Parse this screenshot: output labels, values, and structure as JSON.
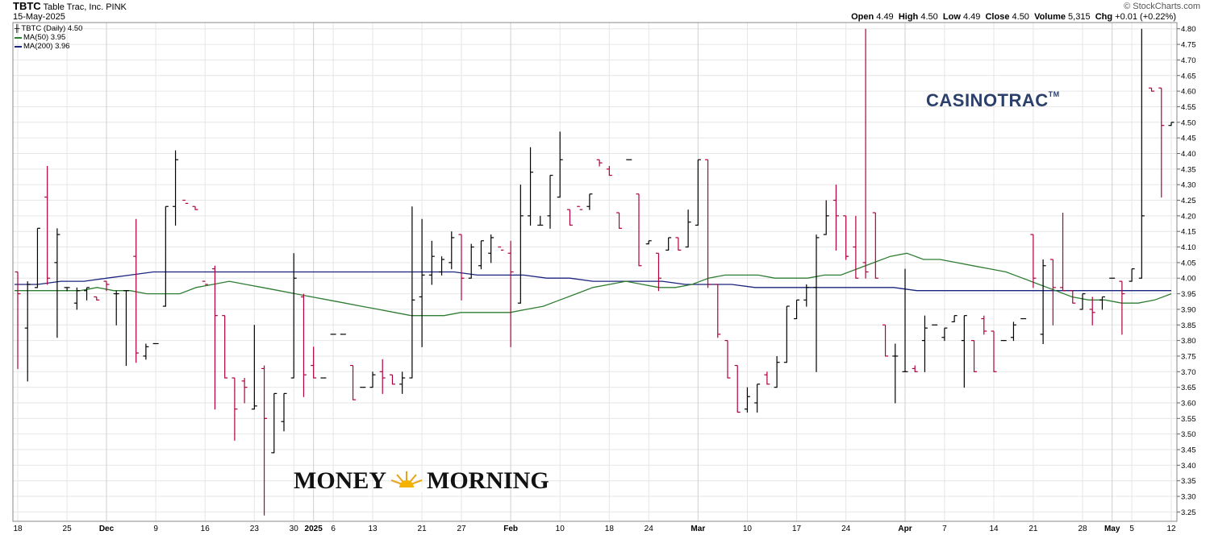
{
  "header": {
    "symbol": "TBTC",
    "company": "Table Trac, Inc.",
    "exchange": "PINK",
    "date": "15-May-2025",
    "copyright": "© StockCharts.com",
    "open_label": "Open",
    "open": "4.49",
    "high_label": "High",
    "high": "4.50",
    "low_label": "Low",
    "low": "4.49",
    "close_label": "Close",
    "close": "4.50",
    "volume_label": "Volume",
    "volume": "5,315",
    "chg_label": "Chg",
    "chg": "+0.01 (+0.22%)"
  },
  "legend": {
    "price": "TBTC (Daily) 4.50",
    "ma50": "MA(50) 3.95",
    "ma200": "MA(200) 3.96"
  },
  "watermarks": {
    "casinotrac": "CASINOTRAC",
    "casinotrac_tm": "TM",
    "money": "MONEY",
    "morning": "MORNING"
  },
  "colors": {
    "up": "#000000",
    "down": "#b0003a",
    "ma50": "#2e7d32",
    "ma200": "#1a237e",
    "grid": "#e6e6e6"
  },
  "chart_data": {
    "type": "ohlc",
    "ylim": [
      3.22,
      4.82
    ],
    "y_ticks": [
      3.25,
      3.3,
      3.35,
      3.4,
      3.45,
      3.5,
      3.55,
      3.6,
      3.65,
      3.7,
      3.75,
      3.8,
      3.85,
      3.9,
      3.95,
      4.0,
      4.05,
      4.1,
      4.15,
      4.2,
      4.25,
      4.3,
      4.35,
      4.4,
      4.45,
      4.5,
      4.55,
      4.6,
      4.65,
      4.7,
      4.75,
      4.8
    ],
    "x_ticks": [
      {
        "label": "18",
        "date": "2024-11-18"
      },
      {
        "label": "25",
        "date": "2024-11-25"
      },
      {
        "label": "Dec",
        "date": "2024-12-02",
        "bold": true
      },
      {
        "label": "9",
        "date": "2024-12-09"
      },
      {
        "label": "16",
        "date": "2024-12-16"
      },
      {
        "label": "23",
        "date": "2024-12-23"
      },
      {
        "label": "30",
        "date": "2024-12-30"
      },
      {
        "label": "2025",
        "date": "2025-01-02",
        "bold": true
      },
      {
        "label": "6",
        "date": "2025-01-06"
      },
      {
        "label": "13",
        "date": "2025-01-13"
      },
      {
        "label": "21",
        "date": "2025-01-21"
      },
      {
        "label": "27",
        "date": "2025-01-27"
      },
      {
        "label": "Feb",
        "date": "2025-02-03",
        "bold": true
      },
      {
        "label": "10",
        "date": "2025-02-10"
      },
      {
        "label": "18",
        "date": "2025-02-18"
      },
      {
        "label": "24",
        "date": "2025-02-24"
      },
      {
        "label": "Mar",
        "date": "2025-03-03",
        "bold": true
      },
      {
        "label": "10",
        "date": "2025-03-10"
      },
      {
        "label": "17",
        "date": "2025-03-17"
      },
      {
        "label": "24",
        "date": "2025-03-24"
      },
      {
        "label": "Apr",
        "date": "2025-04-01",
        "bold": true
      },
      {
        "label": "7",
        "date": "2025-04-07"
      },
      {
        "label": "14",
        "date": "2025-04-14"
      },
      {
        "label": "21",
        "date": "2025-04-21"
      },
      {
        "label": "28",
        "date": "2025-04-28"
      },
      {
        "label": "May",
        "date": "2025-05-01",
        "bold": true
      },
      {
        "label": "5",
        "date": "2025-05-05"
      },
      {
        "label": "12",
        "date": "2025-05-12"
      }
    ],
    "bars": [
      {
        "o": 4.02,
        "h": 4.02,
        "l": 3.71,
        "c": 3.95
      },
      {
        "o": 3.84,
        "h": 3.99,
        "l": 3.67,
        "c": 3.98
      },
      {
        "o": 3.97,
        "h": 4.16,
        "l": 3.97,
        "c": 4.16
      },
      {
        "o": 4.26,
        "h": 4.36,
        "l": 3.98,
        "c": 4.0
      },
      {
        "o": 4.05,
        "h": 4.16,
        "l": 3.81,
        "c": 4.14
      },
      {
        "o": 3.97,
        "h": 3.97,
        "l": 3.96,
        "c": 3.97
      },
      {
        "o": 3.92,
        "h": 3.97,
        "l": 3.9,
        "c": 3.96
      },
      {
        "o": 3.96,
        "h": 3.97,
        "l": 3.93,
        "c": 3.97
      },
      {
        "o": 3.94,
        "h": 3.94,
        "l": 3.93,
        "c": 3.93
      },
      {
        "o": 3.99,
        "h": 3.99,
        "l": 3.96,
        "c": 3.98
      },
      {
        "o": 3.95,
        "h": 3.96,
        "l": 3.85,
        "c": 3.95
      },
      {
        "o": 3.96,
        "h": 3.96,
        "l": 3.72,
        "c": 3.96
      },
      {
        "o": 4.07,
        "h": 4.19,
        "l": 3.73,
        "c": 3.76
      },
      {
        "o": 3.75,
        "h": 3.79,
        "l": 3.74,
        "c": 3.78
      },
      {
        "o": 3.79,
        "h": 3.79,
        "l": 3.79,
        "c": 3.79
      },
      {
        "o": 3.91,
        "h": 4.23,
        "l": 3.91,
        "c": 4.23
      },
      {
        "o": 4.23,
        "h": 4.41,
        "l": 4.17,
        "c": 4.38
      },
      {
        "o": 4.25,
        "h": 4.25,
        "l": 4.25,
        "c": 4.24
      },
      {
        "o": 4.23,
        "h": 4.23,
        "l": 4.22,
        "c": 4.22
      },
      {
        "o": 3.99,
        "h": 3.99,
        "l": 3.99,
        "c": 3.98
      },
      {
        "o": 4.03,
        "h": 4.04,
        "l": 3.58,
        "c": 3.88
      },
      {
        "o": 3.88,
        "h": 3.88,
        "l": 3.68,
        "c": 3.68
      },
      {
        "o": 3.68,
        "h": 3.68,
        "l": 3.48,
        "c": 3.58
      },
      {
        "o": 3.67,
        "h": 3.68,
        "l": 3.6,
        "c": 3.65
      },
      {
        "o": 3.58,
        "h": 3.85,
        "l": 3.58,
        "c": 3.59
      },
      {
        "o": 3.71,
        "h": 3.72,
        "l": 3.24,
        "c": 3.55
      },
      {
        "o": 3.44,
        "h": 3.63,
        "l": 3.44,
        "c": 3.63
      },
      {
        "o": 3.54,
        "h": 3.63,
        "l": 3.51,
        "c": 3.63
      },
      {
        "o": 3.68,
        "h": 4.08,
        "l": 3.68,
        "c": 4.0
      },
      {
        "o": 3.94,
        "h": 3.95,
        "l": 3.62,
        "c": 3.69
      },
      {
        "o": 3.72,
        "h": 3.78,
        "l": 3.68,
        "c": 3.68
      },
      {
        "o": 3.68,
        "h": 3.68,
        "l": 3.68,
        "c": 3.68
      },
      {
        "o": 3.82,
        "h": 3.82,
        "l": 3.82,
        "c": 3.82
      },
      {
        "o": 3.82,
        "h": 3.82,
        "l": 3.82,
        "c": 3.82
      },
      {
        "o": 3.72,
        "h": 3.72,
        "l": 3.61,
        "c": 3.61
      },
      {
        "o": 3.65,
        "h": 3.65,
        "l": 3.65,
        "c": 3.65
      },
      {
        "o": 3.65,
        "h": 3.7,
        "l": 3.65,
        "c": 3.69
      },
      {
        "o": 3.7,
        "h": 3.74,
        "l": 3.63,
        "c": 3.68
      },
      {
        "o": 3.69,
        "h": 3.69,
        "l": 3.66,
        "c": 3.66
      },
      {
        "o": 3.66,
        "h": 3.7,
        "l": 3.63,
        "c": 3.68
      },
      {
        "o": 3.68,
        "h": 4.23,
        "l": 3.68,
        "c": 3.93
      },
      {
        "o": 3.94,
        "h": 4.19,
        "l": 3.78,
        "c": 4.01
      },
      {
        "o": 4.01,
        "h": 4.12,
        "l": 3.98,
        "c": 4.07
      },
      {
        "o": 4.02,
        "h": 4.07,
        "l": 4.01,
        "c": 4.06
      },
      {
        "o": 4.05,
        "h": 4.15,
        "l": 4.03,
        "c": 4.13
      },
      {
        "o": 4.14,
        "h": 4.14,
        "l": 3.93,
        "c": 4.0
      },
      {
        "o": 4.0,
        "h": 4.11,
        "l": 4.0,
        "c": 4.1
      },
      {
        "o": 4.04,
        "h": 4.12,
        "l": 4.03,
        "c": 4.12
      },
      {
        "o": 4.08,
        "h": 4.14,
        "l": 4.05,
        "c": 4.13
      },
      {
        "o": 4.1,
        "h": 4.1,
        "l": 4.1,
        "c": 4.09
      },
      {
        "o": 4.08,
        "h": 4.12,
        "l": 3.78,
        "c": 4.02
      },
      {
        "o": 3.92,
        "h": 4.3,
        "l": 3.92,
        "c": 4.2
      },
      {
        "o": 4.2,
        "h": 4.42,
        "l": 4.17,
        "c": 4.34
      },
      {
        "o": 4.17,
        "h": 4.2,
        "l": 4.17,
        "c": 4.17
      },
      {
        "o": 4.2,
        "h": 4.33,
        "l": 4.16,
        "c": 4.33
      },
      {
        "o": 4.26,
        "h": 4.47,
        "l": 4.26,
        "c": 4.38
      },
      {
        "o": 4.22,
        "h": 4.22,
        "l": 4.17,
        "c": 4.17
      },
      {
        "o": 4.23,
        "h": 4.23,
        "l": 4.23,
        "c": 4.22
      },
      {
        "o": 4.23,
        "h": 4.27,
        "l": 4.22,
        "c": 4.27
      },
      {
        "o": 4.38,
        "h": 4.38,
        "l": 4.36,
        "c": 4.37
      },
      {
        "o": 4.35,
        "h": 4.36,
        "l": 4.33,
        "c": 4.33
      },
      {
        "o": 4.21,
        "h": 4.21,
        "l": 4.16,
        "c": 4.16
      },
      {
        "o": 4.38,
        "h": 4.38,
        "l": 4.38,
        "c": 4.38
      },
      {
        "o": 4.27,
        "h": 4.27,
        "l": 4.04,
        "c": 4.04
      },
      {
        "o": 4.11,
        "h": 4.12,
        "l": 4.11,
        "c": 4.12
      },
      {
        "o": 4.08,
        "h": 4.08,
        "l": 3.96,
        "c": 4.0
      },
      {
        "o": 4.09,
        "h": 4.13,
        "l": 4.09,
        "c": 4.13
      },
      {
        "o": 4.13,
        "h": 4.13,
        "l": 4.09,
        "c": 4.09
      },
      {
        "o": 4.1,
        "h": 4.22,
        "l": 4.1,
        "c": 4.18
      },
      {
        "o": 4.17,
        "h": 4.38,
        "l": 4.17,
        "c": 4.38
      },
      {
        "o": 4.38,
        "h": 4.38,
        "l": 3.97,
        "c": 3.98
      },
      {
        "o": 3.98,
        "h": 3.98,
        "l": 3.81,
        "c": 3.82
      },
      {
        "o": 3.8,
        "h": 3.8,
        "l": 3.68,
        "c": 3.68
      },
      {
        "o": 3.72,
        "h": 3.72,
        "l": 3.57,
        "c": 3.57
      },
      {
        "o": 3.58,
        "h": 3.65,
        "l": 3.57,
        "c": 3.62
      },
      {
        "o": 3.6,
        "h": 3.66,
        "l": 3.57,
        "c": 3.66
      },
      {
        "o": 3.69,
        "h": 3.7,
        "l": 3.66,
        "c": 3.66
      },
      {
        "o": 3.65,
        "h": 3.75,
        "l": 3.65,
        "c": 3.73
      },
      {
        "o": 3.73,
        "h": 3.91,
        "l": 3.73,
        "c": 3.91
      },
      {
        "o": 3.87,
        "h": 3.93,
        "l": 3.87,
        "c": 3.93
      },
      {
        "o": 3.93,
        "h": 3.98,
        "l": 3.91,
        "c": 3.97
      },
      {
        "o": 3.97,
        "h": 4.14,
        "l": 3.7,
        "c": 4.13
      },
      {
        "o": 4.14,
        "h": 4.25,
        "l": 4.14,
        "c": 4.2
      },
      {
        "o": 4.25,
        "h": 4.3,
        "l": 4.09,
        "c": 4.2
      },
      {
        "o": 4.2,
        "h": 4.2,
        "l": 4.06,
        "c": 4.07
      },
      {
        "o": 4.1,
        "h": 4.2,
        "l": 4.0,
        "c": 4.0
      },
      {
        "o": 4.05,
        "h": 4.8,
        "l": 4.0,
        "c": 4.02
      },
      {
        "o": 4.21,
        "h": 4.21,
        "l": 4.0,
        "c": 4.0
      },
      {
        "o": 3.85,
        "h": 3.85,
        "l": 3.75,
        "c": 3.75
      },
      {
        "o": 3.75,
        "h": 3.79,
        "l": 3.6,
        "c": 3.75
      },
      {
        "o": 3.7,
        "h": 4.03,
        "l": 3.7,
        "c": 3.7
      },
      {
        "o": 3.71,
        "h": 3.72,
        "l": 3.7,
        "c": 3.7
      },
      {
        "o": 3.8,
        "h": 3.88,
        "l": 3.7,
        "c": 3.84
      },
      {
        "o": 3.85,
        "h": 3.85,
        "l": 3.85,
        "c": 3.85
      },
      {
        "o": 3.81,
        "h": 3.84,
        "l": 3.8,
        "c": 3.84
      },
      {
        "o": 3.86,
        "h": 3.88,
        "l": 3.86,
        "c": 3.88
      },
      {
        "o": 3.8,
        "h": 3.88,
        "l": 3.65,
        "c": 3.88
      },
      {
        "o": 3.8,
        "h": 3.8,
        "l": 3.7,
        "c": 3.7
      },
      {
        "o": 3.87,
        "h": 3.88,
        "l": 3.82,
        "c": 3.83
      },
      {
        "o": 3.83,
        "h": 3.83,
        "l": 3.7,
        "c": 3.7
      },
      {
        "o": 3.8,
        "h": 3.8,
        "l": 3.8,
        "c": 3.8
      },
      {
        "o": 3.81,
        "h": 3.86,
        "l": 3.8,
        "c": 3.85
      },
      {
        "o": 3.87,
        "h": 3.87,
        "l": 3.87,
        "c": 3.87
      },
      {
        "o": 4.14,
        "h": 4.14,
        "l": 3.97,
        "c": 4.0
      },
      {
        "o": 3.82,
        "h": 4.06,
        "l": 3.79,
        "c": 4.04
      },
      {
        "o": 4.06,
        "h": 4.06,
        "l": 3.85,
        "c": 3.97
      },
      {
        "o": 3.97,
        "h": 4.21,
        "l": 3.96,
        "c": 3.96
      },
      {
        "o": 3.96,
        "h": 3.96,
        "l": 3.92,
        "c": 3.92
      },
      {
        "o": 3.9,
        "h": 3.95,
        "l": 3.9,
        "c": 3.95
      },
      {
        "o": 3.9,
        "h": 3.94,
        "l": 3.85,
        "c": 3.89
      },
      {
        "o": 3.93,
        "h": 3.94,
        "l": 3.9,
        "c": 3.94
      },
      {
        "o": 4.0,
        "h": 4.0,
        "l": 4.0,
        "c": 4.0
      },
      {
        "o": 3.99,
        "h": 3.99,
        "l": 3.82,
        "c": 3.95
      },
      {
        "o": 3.99,
        "h": 4.03,
        "l": 3.99,
        "c": 4.03
      },
      {
        "o": 4.0,
        "h": 4.8,
        "l": 4.0,
        "c": 4.2
      },
      {
        "o": 4.61,
        "h": 4.61,
        "l": 4.6,
        "c": 4.6
      },
      {
        "o": 4.61,
        "h": 4.61,
        "l": 4.26,
        "c": 4.49
      },
      {
        "o": 4.49,
        "h": 4.5,
        "l": 4.49,
        "c": 4.5
      }
    ],
    "ma50": [
      3.96,
      3.96,
      3.96,
      3.96,
      3.96,
      3.97,
      3.96,
      3.96,
      3.95,
      3.95,
      3.95,
      3.97,
      3.98,
      3.99,
      3.98,
      3.97,
      3.96,
      3.95,
      3.94,
      3.93,
      3.92,
      3.91,
      3.9,
      3.89,
      3.88,
      3.88,
      3.88,
      3.89,
      3.89,
      3.89,
      3.89,
      3.9,
      3.91,
      3.93,
      3.95,
      3.97,
      3.98,
      3.99,
      3.98,
      3.97,
      3.97,
      3.98,
      4.0,
      4.01,
      4.01,
      4.01,
      4.0,
      4.0,
      4.0,
      4.01,
      4.01,
      4.03,
      4.05,
      4.07,
      4.08,
      4.06,
      4.06,
      4.05,
      4.04,
      4.03,
      4.02,
      4.0,
      3.98,
      3.96,
      3.94,
      3.93,
      3.93,
      3.92,
      3.92,
      3.93,
      3.95
    ],
    "ma200": [
      3.98,
      3.98,
      3.99,
      3.99,
      4.0,
      4.01,
      4.02,
      4.02,
      4.02,
      4.02,
      4.02,
      4.02,
      4.02,
      4.02,
      4.02,
      4.02,
      4.02,
      4.02,
      4.02,
      4.02,
      4.01,
      4.01,
      4.01,
      4.0,
      4.0,
      3.99,
      3.99,
      3.99,
      3.99,
      3.98,
      3.98,
      3.98,
      3.97,
      3.97,
      3.97,
      3.97,
      3.97,
      3.97,
      3.97,
      3.96,
      3.96,
      3.96,
      3.96,
      3.96,
      3.96,
      3.96,
      3.96,
      3.96,
      3.96,
      3.96,
      3.96
    ]
  }
}
